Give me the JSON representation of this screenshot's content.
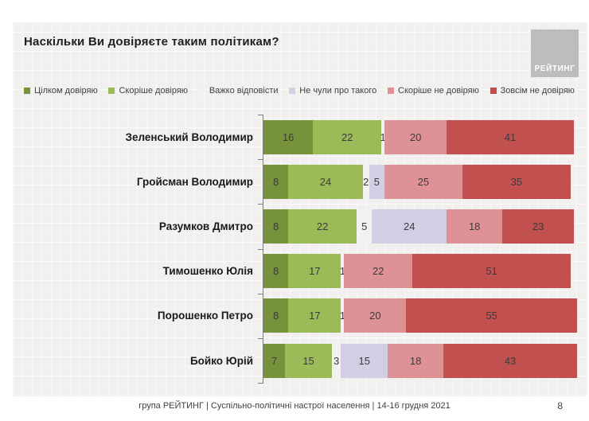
{
  "page": {
    "title": "Наскільки Ви довіряєте таким політикам?",
    "logo_text": "РЕЙТИНГ",
    "footer": "група РЕЙТИНГ | Суспільно-політичні настрої населення | 14-16 грудня 2021",
    "page_number": "8"
  },
  "chart_data": {
    "type": "bar",
    "orientation": "horizontal",
    "stacked": true,
    "title": "Наскільки Ви довіряєте таким політикам?",
    "xlim": [
      0,
      100
    ],
    "legend_position": "top",
    "grid": false,
    "value_labels": "shown inside segments for non-zero values",
    "categories": [
      "Зеленський Володимир",
      "Гройсман Володимир",
      "Разумков Дмитро",
      "Тимошенко Юлія",
      "Порошенко Петро",
      "Бойко Юрій"
    ],
    "series": [
      {
        "name": "Цілком довіряю",
        "color": "#76933C",
        "values": [
          16,
          8,
          8,
          8,
          8,
          7
        ]
      },
      {
        "name": "Скоріше довіряю",
        "color": "#9BBB59",
        "values": [
          22,
          24,
          22,
          17,
          17,
          15
        ]
      },
      {
        "name": "Важко відповісти",
        "color": "#F3F2F0",
        "values": [
          1,
          2,
          5,
          1,
          1,
          3
        ]
      },
      {
        "name": "Не чули про такого",
        "color": "#D3CEE4",
        "values": [
          0,
          5,
          24,
          0,
          0,
          15
        ]
      },
      {
        "name": "Скоріше не довіряю",
        "color": "#DE9296",
        "values": [
          20,
          25,
          18,
          22,
          20,
          18
        ]
      },
      {
        "name": "Зовсім не довіряю",
        "color": "#C2504E",
        "values": [
          41,
          35,
          23,
          51,
          55,
          43
        ]
      }
    ]
  }
}
